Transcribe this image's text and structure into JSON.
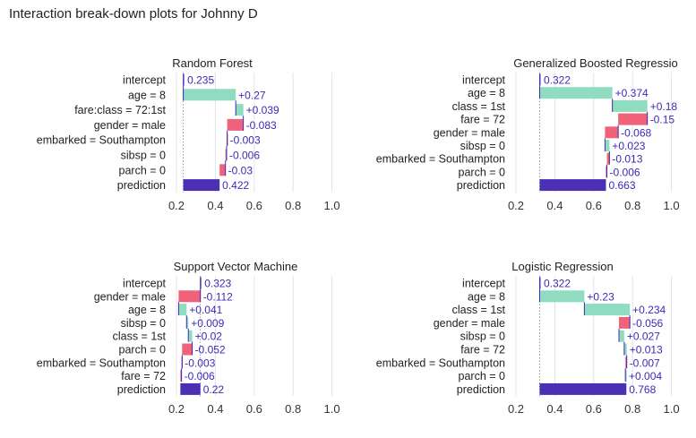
{
  "title": "Interaction break-down plots for Johnny D",
  "colors": {
    "positive": "#8fdcc1",
    "negative": "#f0627a",
    "prediction": "#4b2fb5",
    "value_text": "#3a2bb8",
    "grid": "#e4e4e4",
    "connector": "#3a2bb8"
  },
  "chart_data": [
    {
      "type": "bar",
      "subtype": "waterfall",
      "title": "Random Forest",
      "xlim": [
        0.1,
        1.0
      ],
      "x_ticks": [
        "0.2",
        "0.4",
        "0.6",
        "0.8",
        "1.0"
      ],
      "rows": [
        {
          "label": "intercept",
          "value": 0.235,
          "text": "0.235",
          "kind": "intercept"
        },
        {
          "label": "age = 8",
          "value": 0.27,
          "text": "+0.27",
          "kind": "contribution"
        },
        {
          "label": "fare:class = 72:1st",
          "value": 0.039,
          "text": "+0.039",
          "kind": "contribution"
        },
        {
          "label": "gender = male",
          "value": -0.083,
          "text": "-0.083",
          "kind": "contribution"
        },
        {
          "label": "embarked = Southampton",
          "value": -0.003,
          "text": "-0.003",
          "kind": "contribution"
        },
        {
          "label": "sibsp = 0",
          "value": -0.006,
          "text": "-0.006",
          "kind": "contribution"
        },
        {
          "label": "parch = 0",
          "value": -0.03,
          "text": "-0.03",
          "kind": "contribution"
        },
        {
          "label": "prediction",
          "value": 0.422,
          "text": "0.422",
          "kind": "prediction"
        }
      ]
    },
    {
      "type": "bar",
      "subtype": "waterfall",
      "title": "Generalized Boosted Regressio",
      "xlim": [
        0.1,
        1.0
      ],
      "x_ticks": [
        "0.2",
        "0.4",
        "0.6",
        "0.8",
        "1.0"
      ],
      "rows": [
        {
          "label": "intercept",
          "value": 0.322,
          "text": "0.322",
          "kind": "intercept"
        },
        {
          "label": "age = 8",
          "value": 0.374,
          "text": "+0.374",
          "kind": "contribution"
        },
        {
          "label": "class = 1st",
          "value": 0.18,
          "text": "+0.18",
          "kind": "contribution"
        },
        {
          "label": "fare = 72",
          "value": -0.15,
          "text": "-0.15",
          "kind": "contribution"
        },
        {
          "label": "gender = male",
          "value": -0.068,
          "text": "-0.068",
          "kind": "contribution"
        },
        {
          "label": "sibsp = 0",
          "value": 0.023,
          "text": "+0.023",
          "kind": "contribution"
        },
        {
          "label": "embarked = Southampton",
          "value": -0.013,
          "text": "-0.013",
          "kind": "contribution"
        },
        {
          "label": "parch = 0",
          "value": -0.006,
          "text": "-0.006",
          "kind": "contribution"
        },
        {
          "label": "prediction",
          "value": 0.663,
          "text": "0.663",
          "kind": "prediction"
        }
      ]
    },
    {
      "type": "bar",
      "subtype": "waterfall",
      "title": "Support Vector Machine",
      "xlim": [
        0.1,
        1.0
      ],
      "x_ticks": [
        "0.2",
        "0.4",
        "0.6",
        "0.8",
        "1.0"
      ],
      "rows": [
        {
          "label": "intercept",
          "value": 0.323,
          "text": "0.323",
          "kind": "intercept"
        },
        {
          "label": "gender = male",
          "value": -0.112,
          "text": "-0.112",
          "kind": "contribution"
        },
        {
          "label": "age = 8",
          "value": 0.041,
          "text": "+0.041",
          "kind": "contribution"
        },
        {
          "label": "sibsp = 0",
          "value": 0.009,
          "text": "+0.009",
          "kind": "contribution"
        },
        {
          "label": "class = 1st",
          "value": 0.02,
          "text": "+0.02",
          "kind": "contribution"
        },
        {
          "label": "parch = 0",
          "value": -0.052,
          "text": "-0.052",
          "kind": "contribution"
        },
        {
          "label": "embarked = Southampton",
          "value": -0.003,
          "text": "-0.003",
          "kind": "contribution"
        },
        {
          "label": "fare = 72",
          "value": -0.006,
          "text": "-0.006",
          "kind": "contribution"
        },
        {
          "label": "prediction",
          "value": 0.22,
          "text": "0.22",
          "kind": "prediction"
        }
      ]
    },
    {
      "type": "bar",
      "subtype": "waterfall",
      "title": "Logistic Regression",
      "xlim": [
        0.1,
        1.0
      ],
      "x_ticks": [
        "0.2",
        "0.4",
        "0.6",
        "0.8",
        "1.0"
      ],
      "rows": [
        {
          "label": "intercept",
          "value": 0.322,
          "text": "0.322",
          "kind": "intercept"
        },
        {
          "label": "age = 8",
          "value": 0.23,
          "text": "+0.23",
          "kind": "contribution"
        },
        {
          "label": "class = 1st",
          "value": 0.234,
          "text": "+0.234",
          "kind": "contribution"
        },
        {
          "label": "gender = male",
          "value": -0.056,
          "text": "-0.056",
          "kind": "contribution"
        },
        {
          "label": "sibsp = 0",
          "value": 0.027,
          "text": "+0.027",
          "kind": "contribution"
        },
        {
          "label": "fare = 72",
          "value": 0.013,
          "text": "+0.013",
          "kind": "contribution"
        },
        {
          "label": "embarked = Southampton",
          "value": -0.007,
          "text": "-0.007",
          "kind": "contribution"
        },
        {
          "label": "parch = 0",
          "value": 0.004,
          "text": "+0.004",
          "kind": "contribution"
        },
        {
          "label": "prediction",
          "value": 0.768,
          "text": "0.768",
          "kind": "prediction"
        }
      ]
    }
  ]
}
